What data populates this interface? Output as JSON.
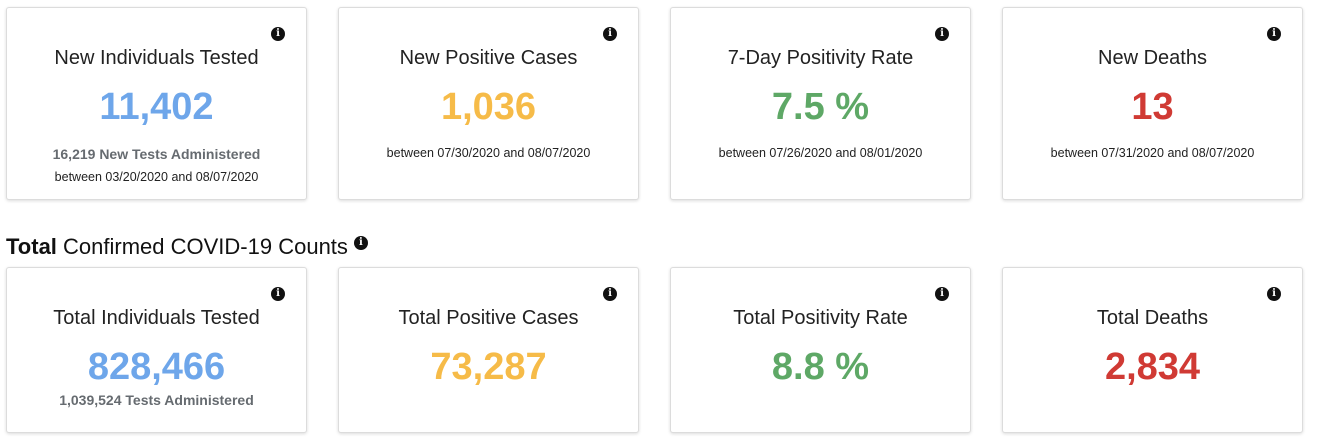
{
  "colors": {
    "blue": "#6ea6ea",
    "orange": "#f6bb48",
    "green": "#5ea866",
    "red": "#d03a34"
  },
  "icons": {
    "info": "info-icon"
  },
  "info_glyph": "i",
  "new_cards": [
    {
      "title": "New Individuals Tested",
      "value": "11,402",
      "sub": "16,219 New Tests Administered",
      "range": "between 03/20/2020 and 08/07/2020"
    },
    {
      "title": "New Positive Cases",
      "value": "1,036",
      "range": "between 07/30/2020 and 08/07/2020"
    },
    {
      "title": "7-Day Positivity Rate",
      "value": "7.5 %",
      "range": "between 07/26/2020 and 08/01/2020"
    },
    {
      "title": "New Deaths",
      "value": "13",
      "range": "between 07/31/2020 and 08/07/2020"
    }
  ],
  "section": {
    "bold": "Total",
    "rest": " Confirmed COVID-19 Counts"
  },
  "total_cards": [
    {
      "title": "Total Individuals Tested",
      "value": "828,466",
      "sub": "1,039,524 Tests Administered"
    },
    {
      "title": "Total Positive Cases",
      "value": "73,287"
    },
    {
      "title": "Total Positivity Rate",
      "value": "8.8 %"
    },
    {
      "title": "Total Deaths",
      "value": "2,834"
    }
  ]
}
